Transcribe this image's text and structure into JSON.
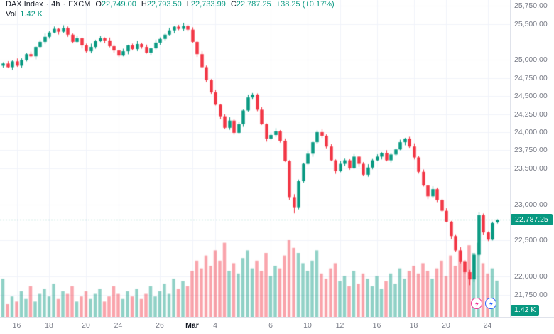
{
  "legend": {
    "symbol": "DAX Index",
    "sep": "·",
    "interval": "4h",
    "exchange": "FXCM",
    "ohlc": {
      "o_label": "O",
      "o": "22,749.00",
      "h_label": "H",
      "h": "22,793.50",
      "l_label": "L",
      "l": "22,733.99",
      "c_label": "C",
      "c": "22,787.25",
      "change": "+38.25 (+0.17%)"
    },
    "volume_label": "Vol",
    "volume_value": "1.42 K"
  },
  "price_axis": {
    "ticks": [
      25750,
      25500,
      25000,
      24750,
      24500,
      24250,
      24000,
      23750,
      23500,
      23000,
      22500,
      22000,
      21750
    ],
    "current_price_label": "22,787.25",
    "volume_badge_label": "1.42 K"
  },
  "time_axis": {
    "ticks": [
      {
        "index": 3,
        "label": "16",
        "major": false
      },
      {
        "index": 10,
        "label": "18",
        "major": false
      },
      {
        "index": 18,
        "label": "20",
        "major": false
      },
      {
        "index": 25,
        "label": "24",
        "major": false
      },
      {
        "index": 34,
        "label": "26",
        "major": false
      },
      {
        "index": 41,
        "label": "Mar",
        "major": true
      },
      {
        "index": 46,
        "label": "4",
        "major": false
      },
      {
        "index": 58,
        "label": "6",
        "major": false
      },
      {
        "index": 66,
        "label": "10",
        "major": false
      },
      {
        "index": 73,
        "label": "12",
        "major": false
      },
      {
        "index": 81,
        "label": "16",
        "major": false
      },
      {
        "index": 89,
        "label": "18",
        "major": false
      },
      {
        "index": 96,
        "label": "20",
        "major": false
      },
      {
        "index": 105,
        "label": "24",
        "major": false
      }
    ]
  },
  "colors": {
    "up": "#089981",
    "down": "#f23645",
    "vol_up": "rgba(8,153,129,0.45)",
    "vol_down": "rgba(242,54,69,0.45)",
    "grid": "#f0f3fa",
    "axis_border": "#e0e3eb",
    "axis_text": "#787b86",
    "text": "#131722",
    "badge_bg": "#089981",
    "price_line": "rgba(8,153,129,0.55)",
    "accent_pink": "#f23697",
    "accent_blue": "#2962ff"
  },
  "icons": [
    "bolt-icon",
    "bolt-icon"
  ],
  "chart_data": {
    "type": "candlestick+volume",
    "title": "DAX Index 4h FXCM",
    "ylabel": "Price",
    "ylim": [
      21440,
      25830
    ],
    "grid": true,
    "current_price": 22787.25,
    "current_volume_k": 1.42,
    "volume_scale_max_k": 3.0,
    "candles_ohlc": [
      [
        24920,
        24968,
        24895,
        24950
      ],
      [
        24950,
        24982,
        24888,
        24900
      ],
      [
        24900,
        24992,
        24862,
        24980
      ],
      [
        24980,
        25020,
        24905,
        24920
      ],
      [
        24920,
        25022,
        24890,
        25000
      ],
      [
        25000,
        25095,
        24980,
        25080
      ],
      [
        25080,
        25115,
        25040,
        25050
      ],
      [
        25050,
        25190,
        25008,
        25180
      ],
      [
        25180,
        25275,
        25162,
        25250
      ],
      [
        25250,
        25365,
        25222,
        25320
      ],
      [
        25320,
        25398,
        25295,
        25380
      ],
      [
        25380,
        25462,
        25368,
        25430
      ],
      [
        25430,
        25442,
        25352,
        25390
      ],
      [
        25390,
        25480,
        25375,
        25440
      ],
      [
        25440,
        25462,
        25320,
        25350
      ],
      [
        25350,
        25365,
        25230,
        25250
      ],
      [
        25250,
        25335,
        25240,
        25300
      ],
      [
        25300,
        25310,
        25158,
        25200
      ],
      [
        25200,
        25225,
        25102,
        25120
      ],
      [
        25120,
        25225,
        25092,
        25180
      ],
      [
        25180,
        25278,
        25155,
        25260
      ],
      [
        25260,
        25332,
        25248,
        25300
      ],
      [
        25300,
        25312,
        25232,
        25270
      ],
      [
        25270,
        25310,
        25175,
        25190
      ],
      [
        25190,
        25212,
        25100,
        25130
      ],
      [
        25130,
        25145,
        25040,
        25060
      ],
      [
        25060,
        25155,
        25050,
        25120
      ],
      [
        25120,
        25210,
        25078,
        25200
      ],
      [
        25200,
        25225,
        25132,
        25150
      ],
      [
        25150,
        25265,
        25122,
        25220
      ],
      [
        25220,
        25238,
        25155,
        25180
      ],
      [
        25180,
        25212,
        25088,
        25100
      ],
      [
        25100,
        25172,
        25062,
        25160
      ],
      [
        25160,
        25280,
        25145,
        25240
      ],
      [
        25240,
        25312,
        25210,
        25290
      ],
      [
        25290,
        25365,
        25270,
        25350
      ],
      [
        25350,
        25445,
        25340,
        25410
      ],
      [
        25410,
        25470,
        25368,
        25460
      ],
      [
        25460,
        25485,
        25412,
        25430
      ],
      [
        25430,
        25515,
        25402,
        25470
      ],
      [
        25470,
        25488,
        25395,
        25420
      ],
      [
        25420,
        25452,
        25238,
        25250
      ],
      [
        25250,
        25262,
        25042,
        25080
      ],
      [
        25080,
        25120,
        24885,
        24900
      ],
      [
        24900,
        24922,
        24690,
        24720
      ],
      [
        24720,
        24735,
        24530,
        24550
      ],
      [
        24550,
        24585,
        24370,
        24380
      ],
      [
        24380,
        24390,
        24178,
        24220
      ],
      [
        24220,
        24245,
        24042,
        24060
      ],
      [
        24060,
        24205,
        24032,
        24160
      ],
      [
        24160,
        24178,
        23965,
        23990
      ],
      [
        23990,
        24142,
        23978,
        24110
      ],
      [
        24110,
        24312,
        24072,
        24300
      ],
      [
        24300,
        24520,
        24285,
        24480
      ],
      [
        24480,
        24542,
        24450,
        24520
      ],
      [
        24520,
        24535,
        24290,
        24310
      ],
      [
        24310,
        24345,
        24100,
        24110
      ],
      [
        24110,
        24120,
        23868,
        23910
      ],
      [
        23910,
        23985,
        23892,
        23960
      ],
      [
        23960,
        24055,
        23932,
        24010
      ],
      [
        24010,
        24028,
        23855,
        23880
      ],
      [
        23880,
        23912,
        23588,
        23600
      ],
      [
        23600,
        23612,
        23062,
        23100
      ],
      [
        23100,
        23140,
        22875,
        22960
      ],
      [
        22960,
        23342,
        22930,
        23320
      ],
      [
        23320,
        23575,
        23300,
        23560
      ],
      [
        23560,
        23735,
        23550,
        23700
      ],
      [
        23700,
        23870,
        23658,
        23860
      ],
      [
        23860,
        24025,
        23842,
        24000
      ],
      [
        24000,
        24045,
        23922,
        23950
      ],
      [
        23950,
        23968,
        23775,
        23800
      ],
      [
        23800,
        23832,
        23598,
        23610
      ],
      [
        23610,
        23622,
        23422,
        23460
      ],
      [
        23460,
        23600,
        23445,
        23560
      ],
      [
        23560,
        23632,
        23530,
        23610
      ],
      [
        23610,
        23625,
        23480,
        23500
      ],
      [
        23500,
        23695,
        23490,
        23660
      ],
      [
        23660,
        23670,
        23518,
        23560
      ],
      [
        23560,
        23585,
        23392,
        23410
      ],
      [
        23410,
        23555,
        23382,
        23510
      ],
      [
        23510,
        23628,
        23485,
        23610
      ],
      [
        23610,
        23692,
        23598,
        23660
      ],
      [
        23660,
        23722,
        23622,
        23710
      ],
      [
        23710,
        23750,
        23595,
        23610
      ],
      [
        23610,
        23712,
        23580,
        23690
      ],
      [
        23690,
        23775,
        23670,
        23760
      ],
      [
        23760,
        23895,
        23750,
        23860
      ],
      [
        23860,
        23920,
        23818,
        23910
      ],
      [
        23910,
        23935,
        23782,
        23800
      ],
      [
        23800,
        23845,
        23622,
        23650
      ],
      [
        23650,
        23668,
        23425,
        23450
      ],
      [
        23450,
        23482,
        23248,
        23260
      ],
      [
        23260,
        23272,
        23072,
        23110
      ],
      [
        23110,
        23250,
        23095,
        23210
      ],
      [
        23210,
        23232,
        23030,
        23060
      ],
      [
        23060,
        23075,
        22890,
        22910
      ],
      [
        22910,
        22945,
        22750,
        22760
      ],
      [
        22760,
        22770,
        22518,
        22560
      ],
      [
        22560,
        22585,
        22342,
        22360
      ],
      [
        22360,
        22405,
        22182,
        22210
      ],
      [
        22210,
        22228,
        22035,
        22060
      ],
      [
        22060,
        22092,
        21880,
        21960
      ],
      [
        21960,
        22312,
        21922,
        22300
      ],
      [
        22300,
        22890,
        22285,
        22850
      ],
      [
        22850,
        22872,
        22580,
        22610
      ],
      [
        22610,
        22625,
        22490,
        22510
      ],
      [
        22510,
        22760,
        22500,
        22740
      ],
      [
        22749,
        22793.5,
        22733.99,
        22787.25
      ]
    ],
    "volumes_k": [
      1.5,
      0.5,
      0.8,
      0.6,
      1.0,
      0.7,
      1.2,
      0.6,
      0.9,
      1.1,
      0.8,
      1.3,
      0.7,
      1.0,
      0.9,
      1.2,
      0.6,
      0.8,
      1.0,
      0.7,
      0.9,
      1.1,
      0.6,
      0.8,
      1.2,
      0.9,
      0.7,
      1.0,
      0.8,
      1.1,
      0.7,
      0.9,
      1.2,
      0.8,
      1.0,
      1.3,
      0.9,
      1.5,
      1.1,
      1.4,
      1.2,
      1.8,
      2.2,
      1.9,
      2.4,
      2.0,
      2.6,
      2.2,
      2.9,
      1.8,
      2.1,
      1.7,
      2.3,
      2.6,
      1.9,
      2.2,
      1.8,
      2.5,
      1.6,
      2.0,
      1.9,
      2.4,
      3.0,
      2.7,
      2.5,
      2.1,
      1.8,
      2.2,
      2.6,
      1.7,
      1.5,
      1.9,
      2.1,
      1.4,
      1.6,
      1.2,
      1.8,
      1.3,
      1.7,
      1.5,
      1.2,
      1.6,
      1.1,
      1.4,
      1.7,
      1.3,
      1.9,
      1.5,
      1.8,
      2.0,
      1.7,
      2.1,
      1.8,
      1.5,
      1.9,
      2.2,
      1.6,
      2.4,
      2.0,
      2.6,
      2.2,
      2.8,
      2.5,
      2.9,
      2.1,
      1.7,
      1.9,
      1.42
    ]
  }
}
